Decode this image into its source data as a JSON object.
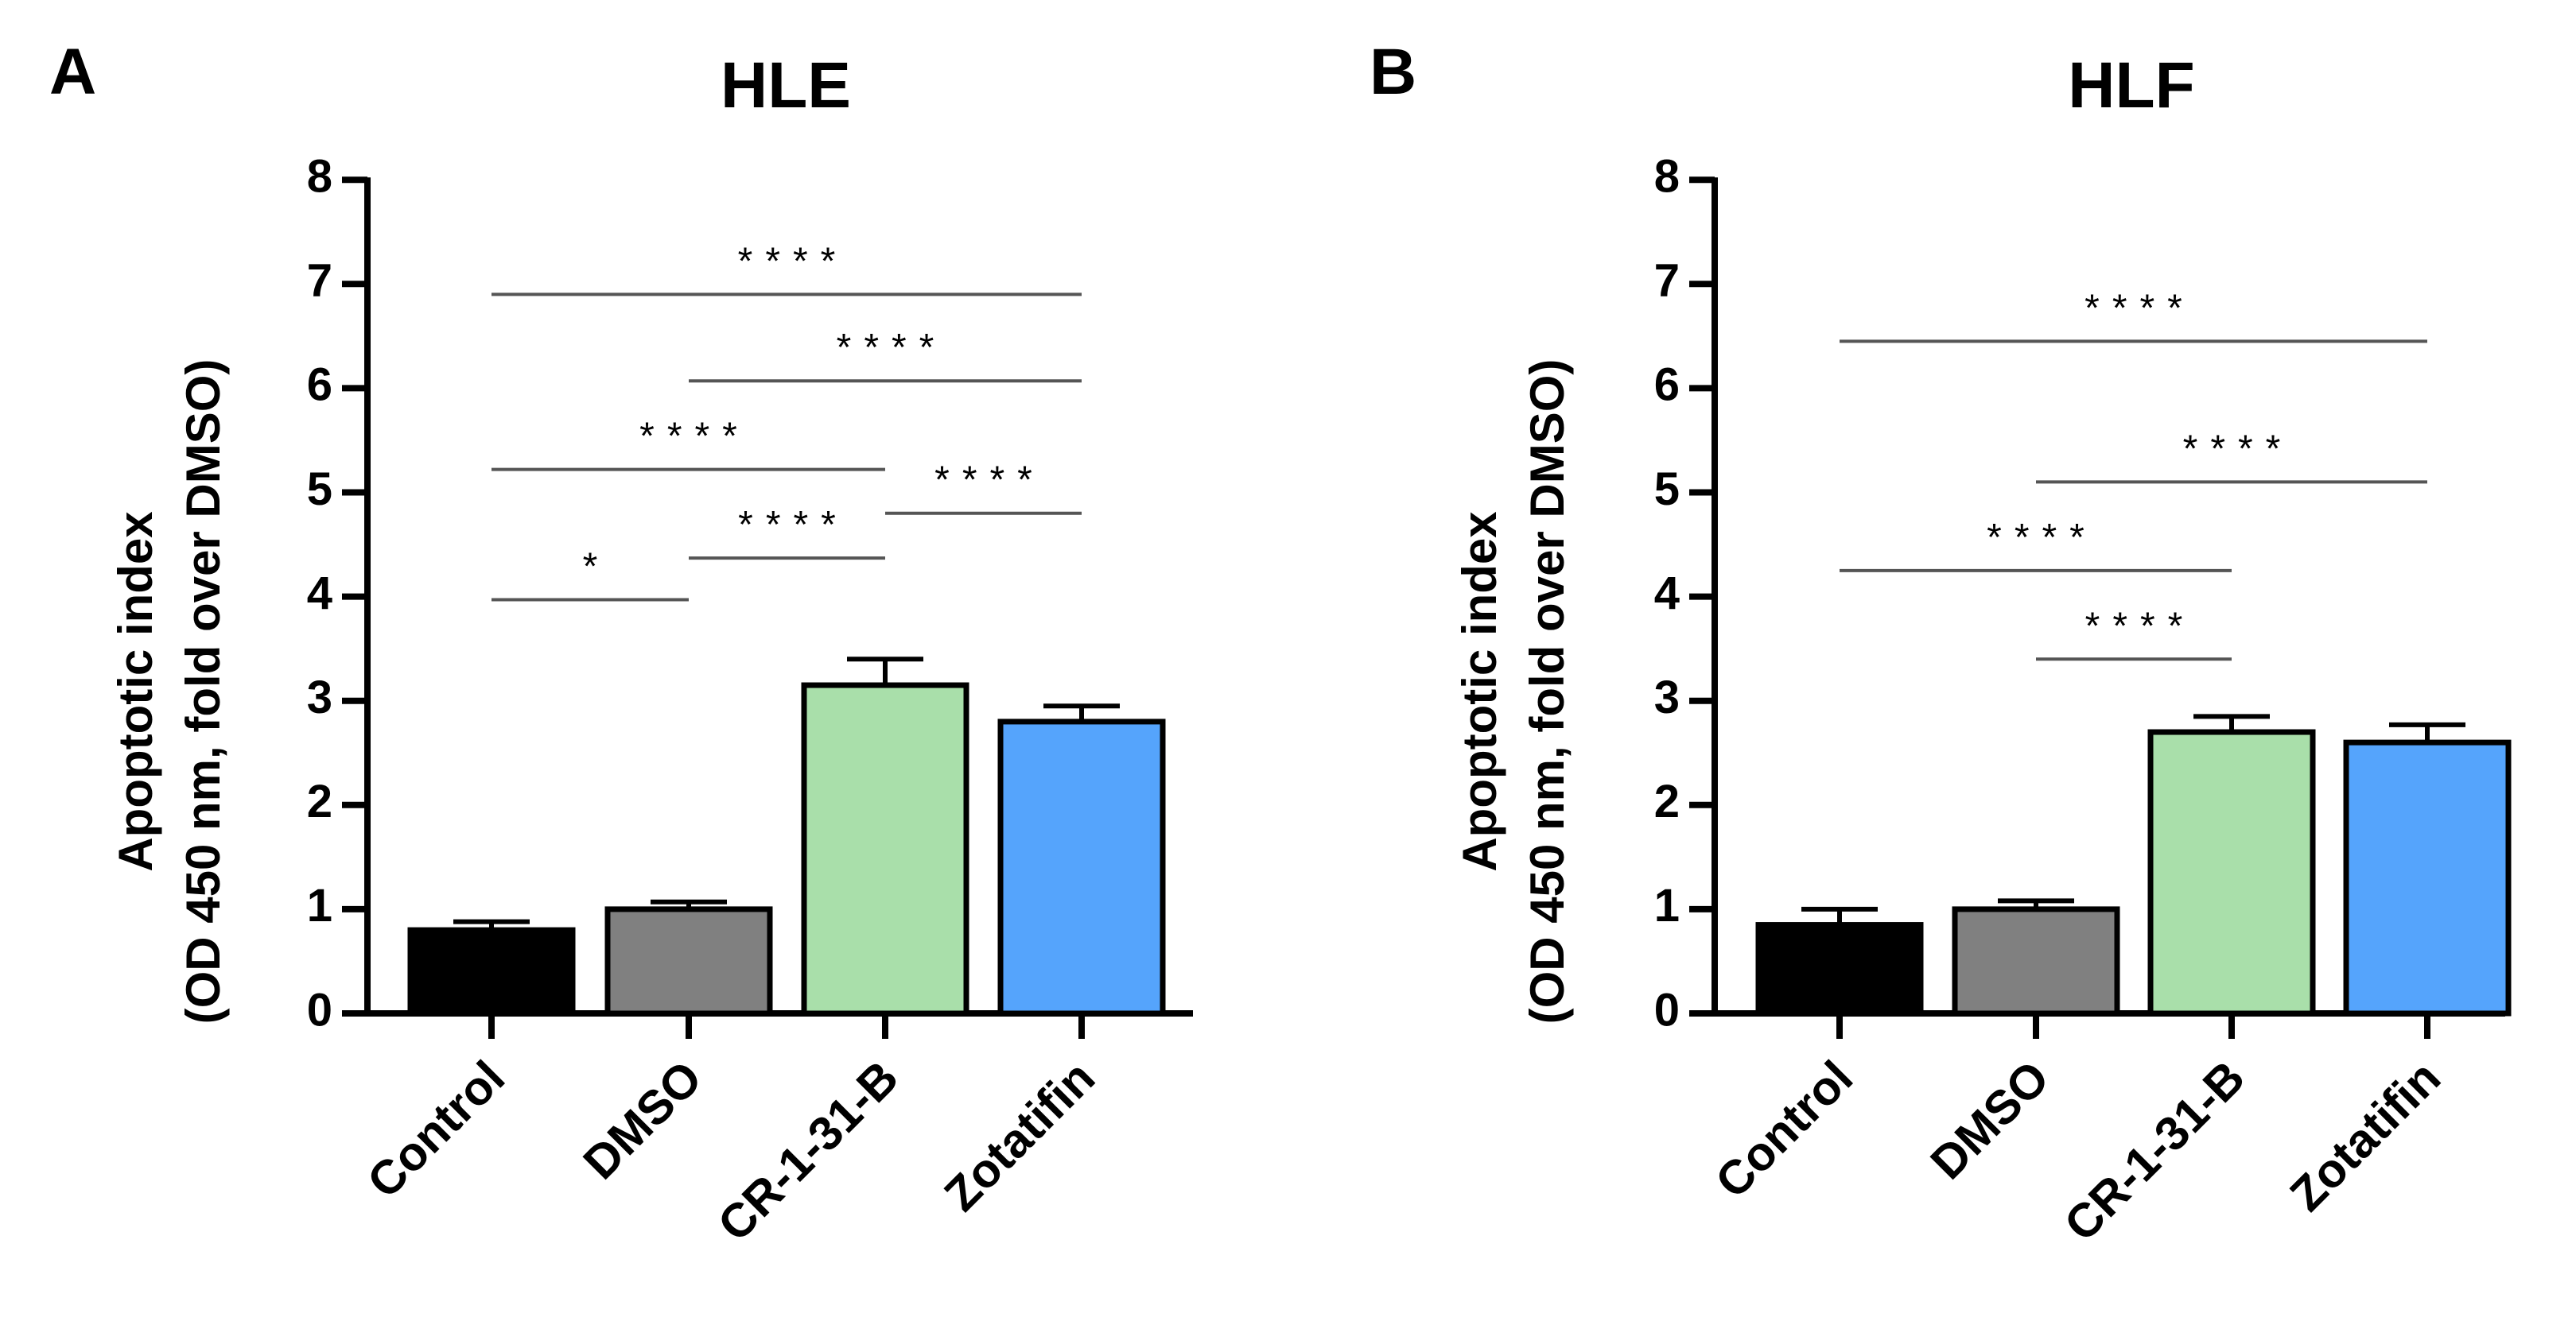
{
  "colors": {
    "Control": "#000000",
    "DMSO": "#808080",
    "CR-1-31-B": "#a9dfaa",
    "Zotatifin": "#55a4fc"
  },
  "chart_data": [
    {
      "panel": "A",
      "type": "bar",
      "title": "HLE",
      "ylabel_line1": "Apoptotic index",
      "ylabel_line2": "(OD 450 nm, fold over DMSO)",
      "xlabel": "",
      "ylim": [
        0,
        8
      ],
      "yticks": [
        "0",
        "1",
        "2",
        "3",
        "4",
        "5",
        "6",
        "7",
        "8"
      ],
      "categories": [
        "Control",
        "DMSO",
        "CR-1-31-B",
        "Zotatifin"
      ],
      "values": [
        0.8,
        1.0,
        3.15,
        2.8
      ],
      "errors": [
        0.08,
        0.07,
        0.25,
        0.15
      ],
      "comparisons": [
        {
          "from": 0,
          "to": 1,
          "y": 3.97,
          "label": "*"
        },
        {
          "from": 1,
          "to": 2,
          "y": 4.37,
          "label": "****"
        },
        {
          "from": 2,
          "to": 3,
          "y": 4.8,
          "label": "****"
        },
        {
          "from": 0,
          "to": 2,
          "y": 5.22,
          "label": "****"
        },
        {
          "from": 1,
          "to": 3,
          "y": 6.07,
          "label": "****"
        },
        {
          "from": 0,
          "to": 3,
          "y": 6.9,
          "label": "****"
        }
      ]
    },
    {
      "panel": "B",
      "type": "bar",
      "title": "HLF",
      "ylabel_line1": "Apoptotic index",
      "ylabel_line2": "(OD 450 nm, fold over DMSO)",
      "xlabel": "",
      "ylim": [
        0,
        8
      ],
      "yticks": [
        "0",
        "1",
        "2",
        "3",
        "4",
        "5",
        "6",
        "7",
        "8"
      ],
      "categories": [
        "Control",
        "DMSO",
        "CR-1-31-B",
        "Zotatifin"
      ],
      "values": [
        0.85,
        1.0,
        2.7,
        2.6
      ],
      "errors": [
        0.15,
        0.08,
        0.15,
        0.17
      ],
      "comparisons": [
        {
          "from": 1,
          "to": 2,
          "y": 3.4,
          "label": "****"
        },
        {
          "from": 0,
          "to": 2,
          "y": 4.25,
          "label": "****"
        },
        {
          "from": 1,
          "to": 3,
          "y": 5.1,
          "label": "****"
        },
        {
          "from": 0,
          "to": 3,
          "y": 6.45,
          "label": "****"
        }
      ]
    }
  ]
}
